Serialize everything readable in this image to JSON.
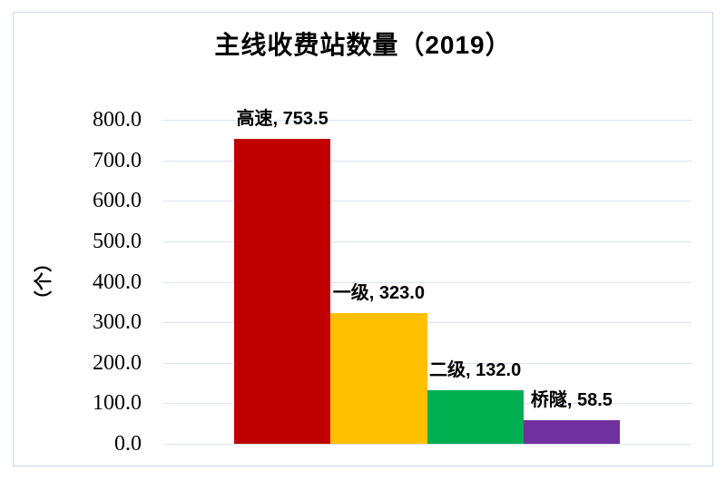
{
  "chart_data": {
    "type": "bar",
    "title": "主线收费站数量（2019）",
    "xlabel": "",
    "ylabel": "（个）",
    "categories": [
      "高速",
      "一级",
      "二级",
      "桥隧"
    ],
    "values": [
      753.5,
      323.0,
      132.0,
      58.5
    ],
    "data_labels": [
      "高速, 753.5",
      "一级, 323.0",
      "二级, 132.0",
      "桥隧, 58.5"
    ],
    "bar_colors": [
      "#c00000",
      "#ffc000",
      "#00b050",
      "#7030a0"
    ],
    "ylim": [
      0,
      800
    ],
    "ytick_step": 100,
    "ytick_labels": [
      "800.0",
      "700.0",
      "600.0",
      "500.0",
      "400.0",
      "300.0",
      "200.0",
      "100.0",
      "0.0"
    ],
    "grid": true,
    "legend_position": "none",
    "gridline_color": "#d9e3f0",
    "frame_border_color": "#c5d7ec"
  }
}
